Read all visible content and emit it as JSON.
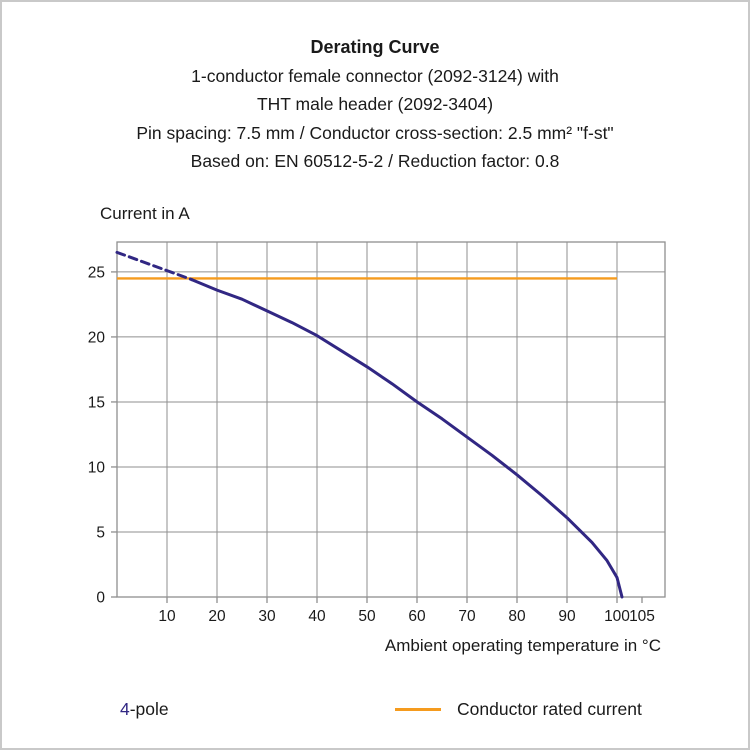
{
  "header": {
    "title": "Derating Curve",
    "subtitles": [
      "1-conductor female connector (2092-3124) with",
      "THT male header (2092-3404)",
      "Pin spacing: 7.5 mm / Conductor cross-section: 2.5 mm² \"f-st\"",
      "Based on: EN 60512-5-2 / Reduction factor: 0.8"
    ]
  },
  "chart_data": {
    "type": "line",
    "title": "Derating Curve",
    "ylabel": "Current in A",
    "xlabel": "Ambient operating temperature in °C",
    "xlim": [
      0,
      109.6
    ],
    "ylim": [
      0,
      27.3
    ],
    "xticks": [
      10,
      20,
      30,
      40,
      50,
      60,
      70,
      80,
      90,
      100,
      105
    ],
    "yticks": [
      0,
      5,
      10,
      15,
      20,
      25
    ],
    "grid_x": [
      10,
      20,
      30,
      40,
      50,
      60,
      70,
      80,
      90,
      100
    ],
    "grid_y": [
      5,
      10,
      15,
      20,
      25
    ],
    "grid_color": "#8f8f8f",
    "axis_color": "#8f8f8f",
    "series": [
      {
        "name": "4-pole",
        "color": "#312783",
        "dashed_until_x": 15,
        "points": [
          [
            0,
            26.5
          ],
          [
            5,
            25.8
          ],
          [
            10,
            25.1
          ],
          [
            15,
            24.4
          ],
          [
            20,
            23.6
          ],
          [
            25,
            22.9
          ],
          [
            30,
            22.0
          ],
          [
            35,
            21.1
          ],
          [
            40,
            20.1
          ],
          [
            45,
            18.9
          ],
          [
            50,
            17.7
          ],
          [
            55,
            16.4
          ],
          [
            60,
            15.0
          ],
          [
            65,
            13.7
          ],
          [
            70,
            12.3
          ],
          [
            75,
            10.9
          ],
          [
            80,
            9.4
          ],
          [
            85,
            7.8
          ],
          [
            90,
            6.1
          ],
          [
            95,
            4.2
          ],
          [
            98,
            2.8
          ],
          [
            100,
            1.5
          ],
          [
            101,
            0
          ]
        ]
      }
    ],
    "reference_line": {
      "label": "Conductor rated current",
      "color": "#F59B1E",
      "y": 24.5,
      "x_start": 0,
      "x_end": 100
    }
  },
  "legend": {
    "pole_number": "4",
    "pole_suffix": "-pole",
    "rated_label": "Conductor rated current"
  }
}
